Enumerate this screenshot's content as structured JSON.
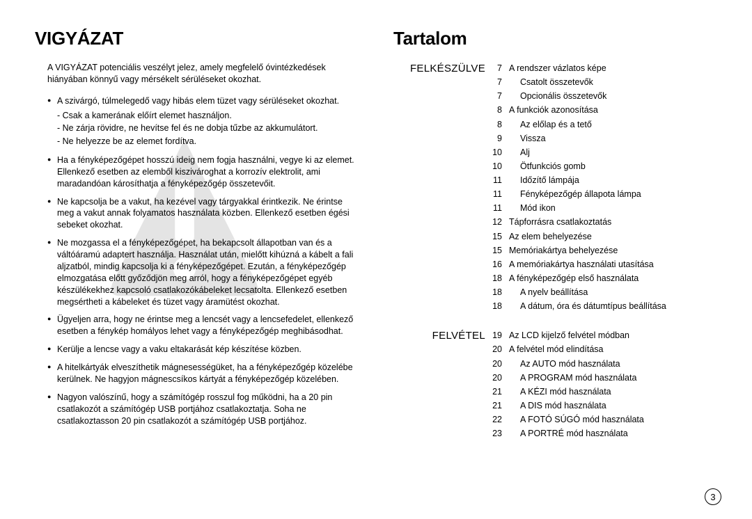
{
  "left": {
    "heading": "VIGYÁZAT",
    "intro": "A VIGYÁZAT potenciális veszélyt jelez, amely megfelelő óvintézkedések hiányában könnyű vagy mérsékelt sérüléseket okozhat.",
    "bullets": [
      {
        "text": "A szivárgó, túlmelegedő vagy hibás elem tüzet vagy sérüléseket okozhat.",
        "sub": [
          "- Csak a kamerának előírt elemet használjon.",
          "- Ne zárja rövidre, ne hevítse fel és ne dobja tűzbe az akkumulátort.",
          "- Ne helyezze be az elemet fordítva."
        ]
      },
      {
        "text": "Ha a fényképezőgépet hosszú ideig nem fogja használni, vegye ki az elemet. Ellenkező esetben az elemből kiszivároghat a korrozív elektrolit, ami maradandóan károsíthatja a fényképezőgép összetevőit."
      },
      {
        "text": "Ne kapcsolja be a vakut, ha kezével vagy tárgyakkal érintkezik. Ne érintse meg a vakut annak folyamatos használata közben. Ellenkező esetben égési sebeket okozhat."
      },
      {
        "text": "Ne mozgassa el a fényképezőgépet, ha bekapcsolt állapotban van és a váltóáramú adaptert használja. Használat után, mielőtt kihúzná a kábelt a fali aljzatból, mindig kapcsolja ki a fényképezőgépet. Ezután, a fényképezőgép elmozgatása előtt győződjön meg arról, hogy a fényképezőgépet egyéb készülékekhez kapcsoló csatlakozókábeleket lecsatolta. Ellenkező esetben megsértheti a kábeleket és tüzet vagy áramütést okozhat."
      },
      {
        "text": "Ügyeljen arra, hogy ne érintse meg a lencsét vagy a lencsefedelet, ellenkező esetben a fénykép homályos lehet vagy a fényképezőgép meghibásodhat."
      },
      {
        "text": "Kerülje a lencse vagy a vaku eltakarását kép készítése közben."
      },
      {
        "text": "A hitelkártyák elveszíthetik mágnesességüket, ha a fényképezőgép közelébe kerülnek. Ne hagyjon mágnescsíkos kártyát a fényképezőgép közelében."
      },
      {
        "text": "Nagyon valószínű, hogy a számítógép rosszul fog működni, ha a 20 pin csatlakozót a számítógép USB portjához csatlakoztatja. Soha ne csatlakoztasson 20 pin csatlakozót a számítógép USB portjához."
      }
    ]
  },
  "right": {
    "heading": "Tartalom",
    "sections": [
      {
        "label": "FELKÉSZÜLVE",
        "rows": [
          {
            "p": "7",
            "t": "A rendszer vázlatos képe"
          },
          {
            "p": "7",
            "t": "Csatolt összetevők",
            "indent": true
          },
          {
            "p": "7",
            "t": "Opcionális összetevők",
            "indent": true
          },
          {
            "p": "8",
            "t": "A funkciók azonosítása"
          },
          {
            "p": "8",
            "t": "Az előlap és a tető",
            "indent": true
          },
          {
            "p": "9",
            "t": "Vissza",
            "indent": true
          },
          {
            "p": "10",
            "t": "Alj",
            "indent": true
          },
          {
            "p": "10",
            "t": "Ötfunkciós gomb",
            "indent": true
          },
          {
            "p": "11",
            "t": "Időzítő lámpája",
            "indent": true
          },
          {
            "p": "11",
            "t": "Fényképezőgép állapota lámpa",
            "indent": true
          },
          {
            "p": "11",
            "t": "Mód ikon",
            "indent": true
          },
          {
            "p": "12",
            "t": "Tápforrásra csatlakoztatás"
          },
          {
            "p": "15",
            "t": "Az elem behelyezése"
          },
          {
            "p": "15",
            "t": "Memóriakártya behelyezése"
          },
          {
            "p": "16",
            "t": "A memóriakártya használati utasítása"
          },
          {
            "p": "18",
            "t": "A fényképezőgép első használata"
          },
          {
            "p": "18",
            "t": "A nyelv beállítása",
            "indent": true
          },
          {
            "p": "18",
            "t": "A dátum, óra és dátumtípus beállítása",
            "indent": true
          }
        ]
      },
      {
        "label": "FELVÉTEL",
        "rows": [
          {
            "p": "19",
            "t": "Az LCD kijelző felvétel módban"
          },
          {
            "p": "20",
            "t": "A felvétel mód elindítása"
          },
          {
            "p": "20",
            "t": "Az AUTO mód használata",
            "indent": true
          },
          {
            "p": "20",
            "t": "A PROGRAM mód használata",
            "indent": true
          },
          {
            "p": "21",
            "t": "A KÉZI mód használata",
            "indent": true
          },
          {
            "p": "21",
            "t": "A DIS mód használata",
            "indent": true
          },
          {
            "p": "22",
            "t": "A FOTÓ SÚGÓ mód használata",
            "indent": true
          },
          {
            "p": "23",
            "t": "A PORTRÉ mód használata",
            "indent": true
          }
        ]
      }
    ]
  },
  "pageNumber": "3"
}
